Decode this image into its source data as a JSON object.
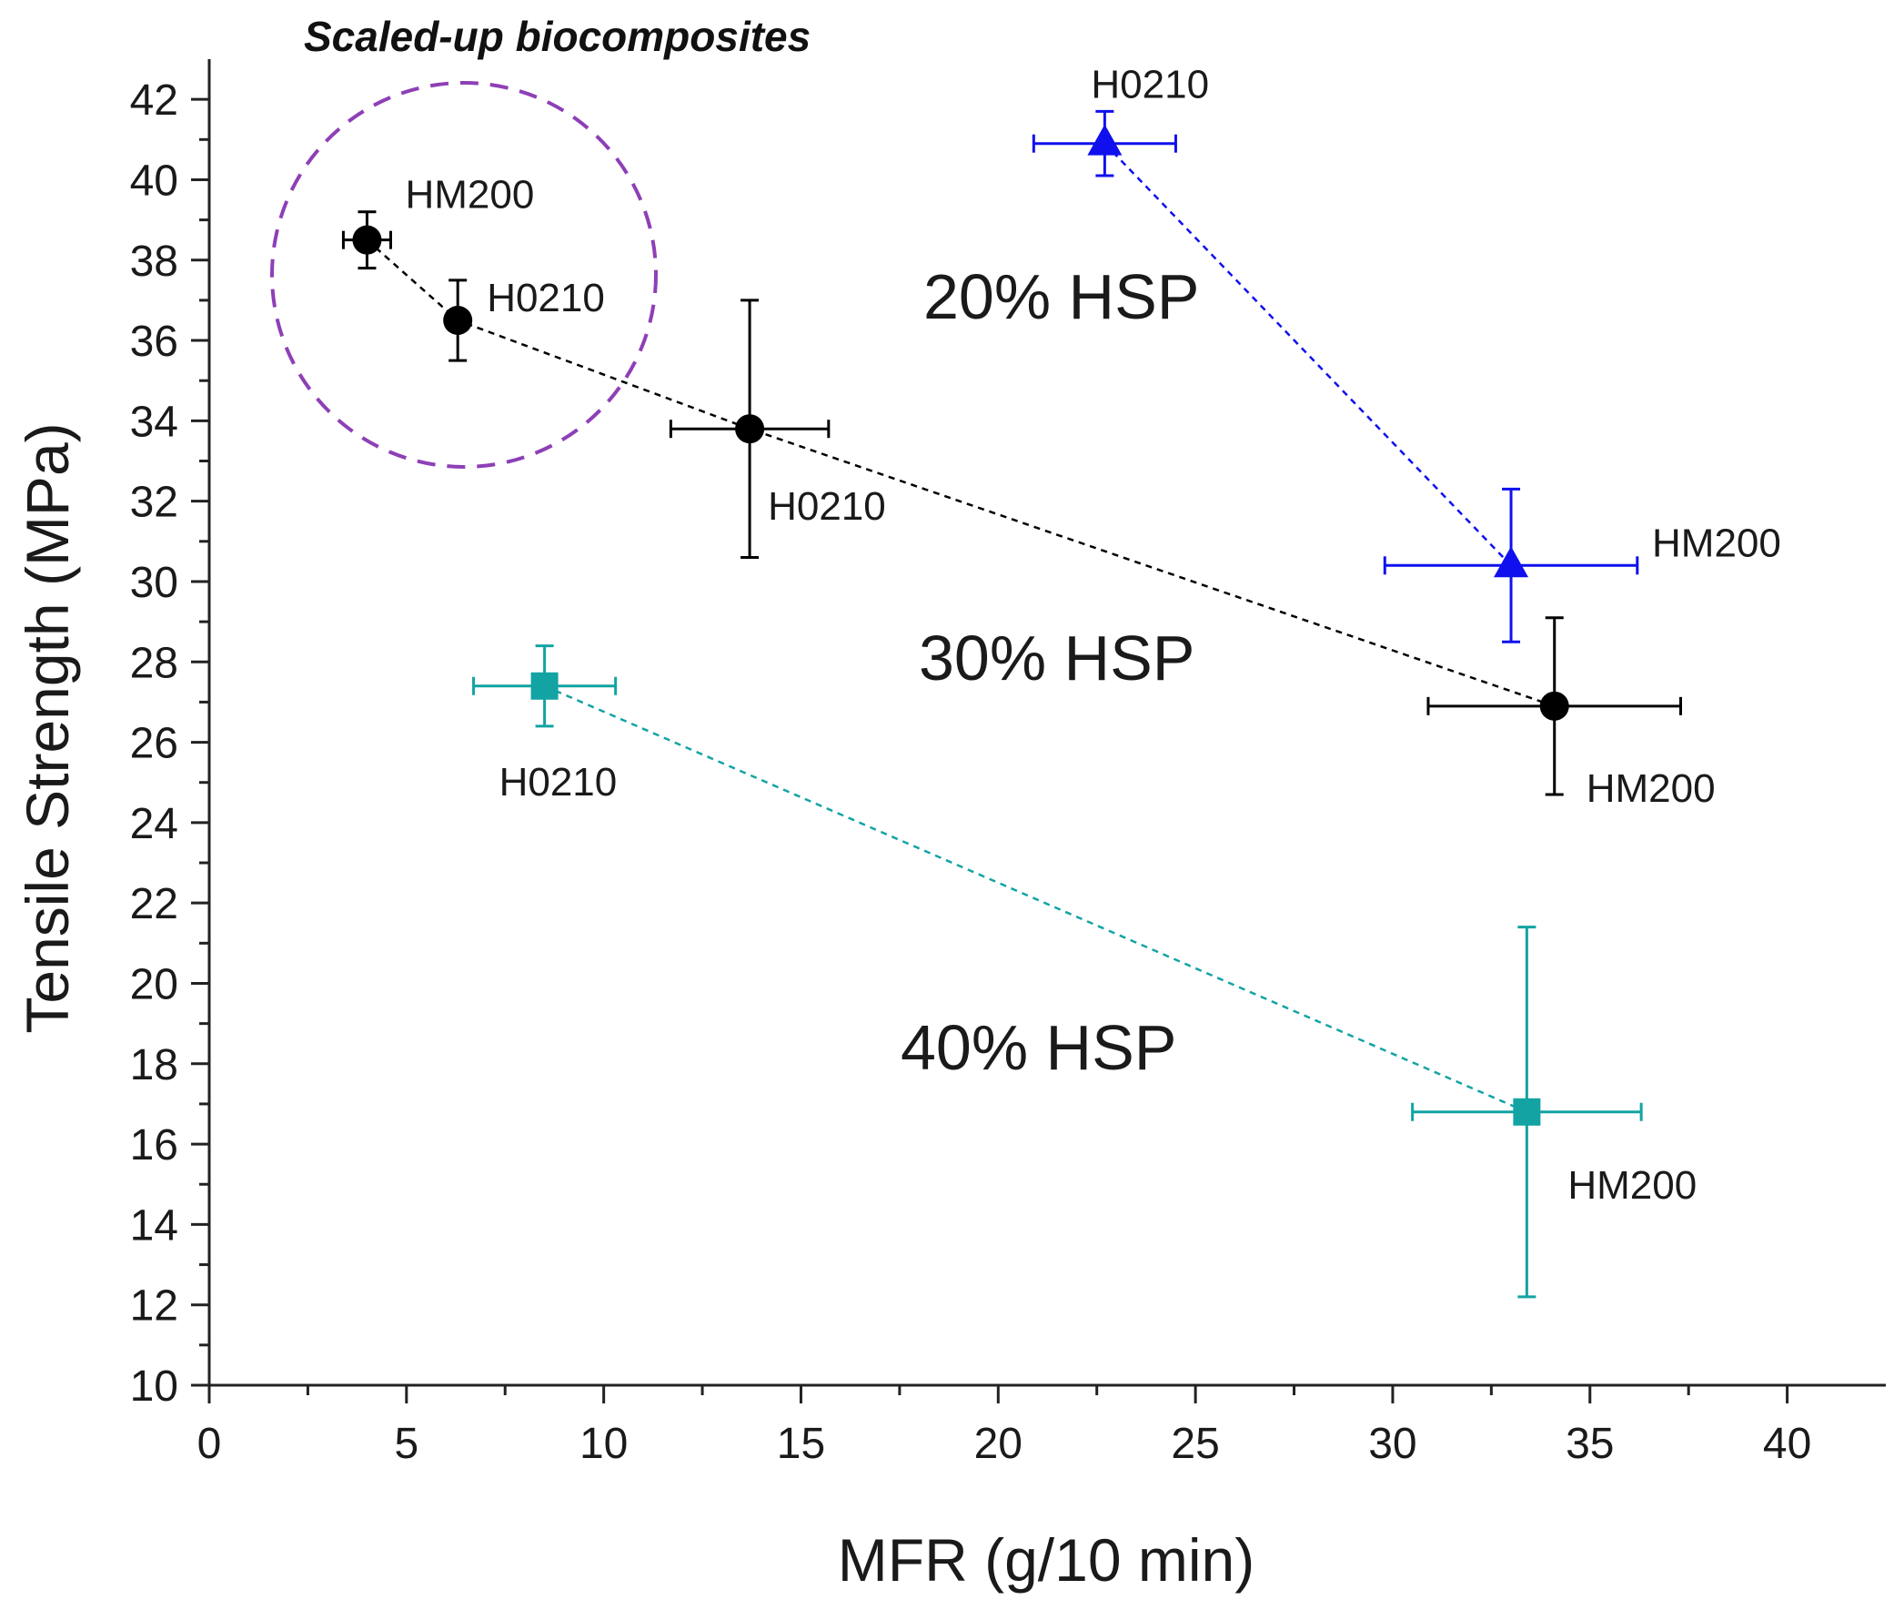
{
  "chart_data": {
    "type": "scatter",
    "title": "",
    "xlabel": "MFR (g/10 min)",
    "ylabel": "Tensile Strength (MPa)",
    "xlim": [
      0,
      42.5
    ],
    "ylim": [
      10,
      43
    ],
    "xticks": [
      0,
      5,
      10,
      15,
      20,
      25,
      30,
      35,
      40
    ],
    "yticks": [
      10,
      12,
      14,
      16,
      18,
      20,
      22,
      24,
      26,
      28,
      30,
      32,
      34,
      36,
      38,
      40,
      42
    ],
    "grid": false,
    "series": [
      {
        "name": "20% HSP",
        "color": "#1010ee",
        "marker": "triangle",
        "points": [
          {
            "label": "H0210",
            "x": 22.7,
            "y": 40.9,
            "xerr": 1.8,
            "yerr": 0.8
          },
          {
            "label": "HM200",
            "x": 33.0,
            "y": 30.4,
            "xerr": 3.2,
            "yerr": 1.9
          }
        ]
      },
      {
        "name": "30% HSP",
        "color": "#000000",
        "marker": "circle",
        "points": [
          {
            "label": "HM200",
            "x": 4.0,
            "y": 38.5,
            "xerr": 0.6,
            "yerr": 0.7
          },
          {
            "label": "H0210",
            "x": 6.3,
            "y": 36.5,
            "xerr": 0.0,
            "yerr": 1.0
          },
          {
            "label": "H0210",
            "x": 13.7,
            "y": 33.8,
            "xerr": 2.0,
            "yerr": 3.2
          },
          {
            "label": "HM200",
            "x": 34.1,
            "y": 26.9,
            "xerr": 3.2,
            "yerr": 2.2
          }
        ]
      },
      {
        "name": "40% HSP",
        "color": "#13a3a3",
        "marker": "square",
        "points": [
          {
            "label": "H0210",
            "x": 8.5,
            "y": 27.4,
            "xerr": 1.8,
            "yerr": 1.0
          },
          {
            "label": "HM200",
            "x": 33.4,
            "y": 16.8,
            "xerr": 2.9,
            "yerr": 4.6
          }
        ]
      }
    ],
    "annotations": {
      "group_labels": [
        "20% HSP",
        "30% HSP",
        "40% HSP"
      ],
      "circle_label": "Scaled-up biocomposites",
      "circle_color": "#8e3fb6"
    }
  }
}
